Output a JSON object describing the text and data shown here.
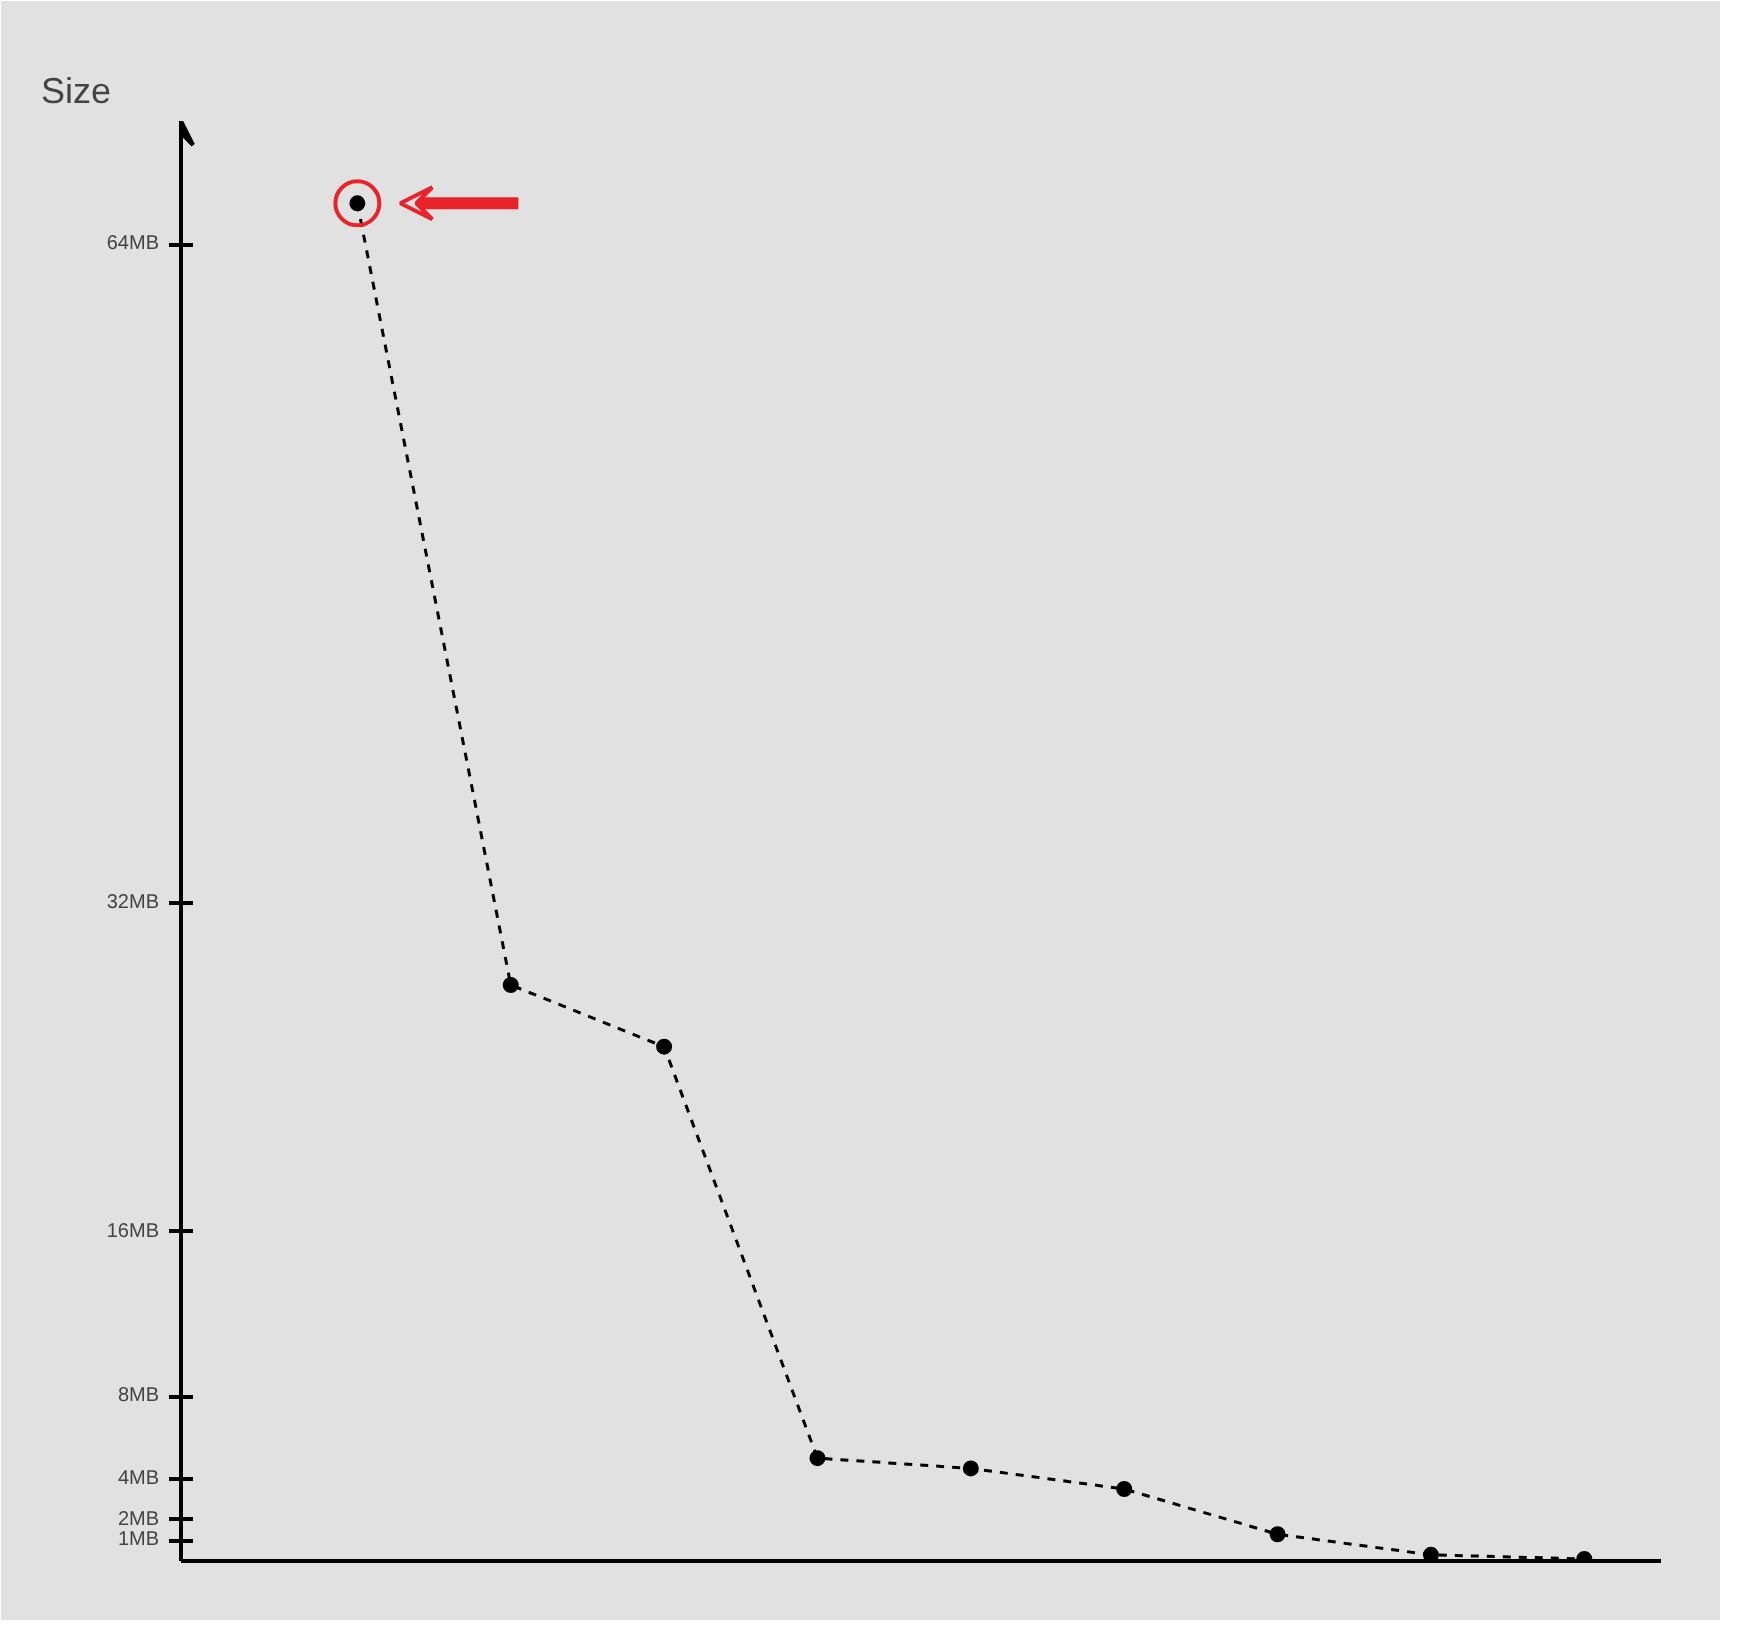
{
  "chart_data": {
    "type": "line",
    "ylabel": "Size",
    "categories": [
      null,
      null,
      null,
      null,
      null,
      null,
      null,
      null,
      null
    ],
    "series": [
      {
        "color": "#000000",
        "values": [
          66,
          28,
          25,
          5,
          4.5,
          3.5,
          1.3,
          0.3,
          0.1
        ]
      }
    ],
    "ylim": [
      0,
      70
    ],
    "yticks": [
      {
        "value": 1,
        "label": "1MB"
      },
      {
        "value": 2,
        "label": "2MB"
      },
      {
        "value": 4,
        "label": "4MB"
      },
      {
        "value": 8,
        "label": "8MB"
      },
      {
        "value": 16,
        "label": "16MB"
      },
      {
        "value": 32,
        "label": "32MB"
      },
      {
        "value": 64,
        "label": "64MB"
      }
    ],
    "marker": "circle",
    "line_style": "dashed"
  }
}
